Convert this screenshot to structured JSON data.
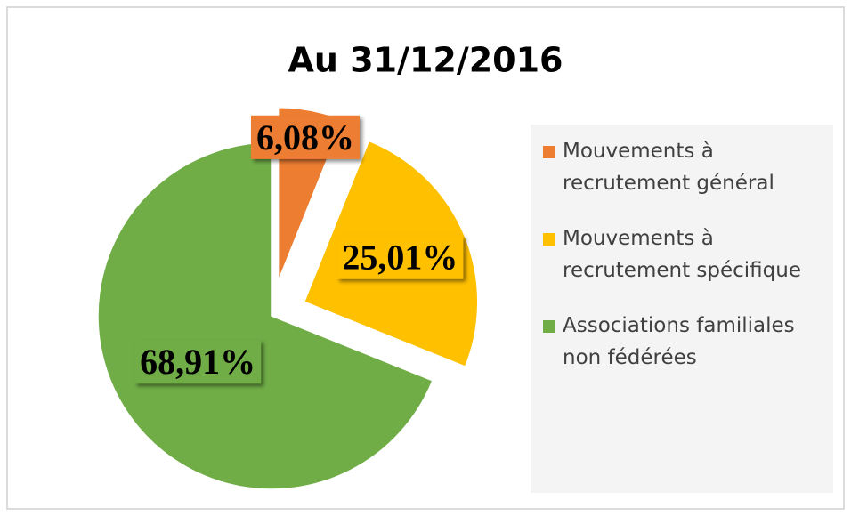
{
  "chart_data": {
    "type": "pie",
    "title": "Au 31/12/2016",
    "categories": [
      "Mouvements à recrutement général",
      "Mouvements à recrutement spécifique",
      "Associations familiales non fédérées"
    ],
    "values": [
      6.08,
      25.01,
      68.91
    ],
    "value_labels": [
      "6,08%",
      "25,01%",
      "68,91%"
    ],
    "colors": [
      "#ED7D31",
      "#FFC000",
      "#70AD47"
    ],
    "legend": "right"
  }
}
